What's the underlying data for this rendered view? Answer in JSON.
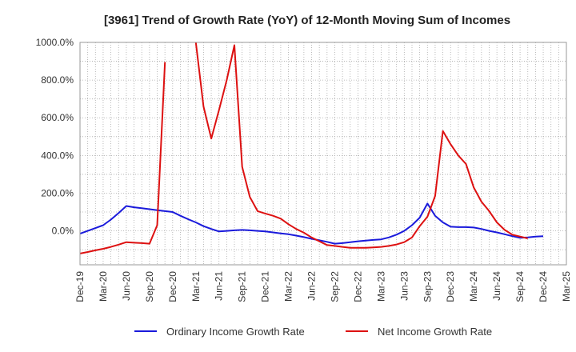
{
  "chart_data": {
    "type": "line",
    "title": "[3961]  Trend of Growth Rate (YoY) of 12-Month Moving Sum of Incomes",
    "xlabel": "",
    "ylabel": "",
    "x_ticks": [
      "Dec-19",
      "Mar-20",
      "Jun-20",
      "Sep-20",
      "Dec-20",
      "Mar-21",
      "Jun-21",
      "Sep-21",
      "Dec-21",
      "Mar-22",
      "Jun-22",
      "Sep-22",
      "Dec-22",
      "Mar-23",
      "Jun-23",
      "Sep-23",
      "Dec-23",
      "Mar-24",
      "Jun-24",
      "Sep-24",
      "Dec-24",
      "Mar-25"
    ],
    "y_ticks": [
      0,
      200,
      400,
      600,
      800,
      1000
    ],
    "y_tick_labels": [
      "0.0%",
      "200.0%",
      "400.0%",
      "600.0%",
      "800.0%",
      "1000.0%"
    ],
    "ylim": [
      -180,
      1000
    ],
    "grid": true,
    "legend_position": "bottom",
    "series": [
      {
        "name": "Ordinary Income Growth Rate",
        "color": "#1a1adb",
        "points": [
          {
            "x": "Dec-19",
            "y": -15
          },
          {
            "x": "Jan-20",
            "y": 0
          },
          {
            "x": "Feb-20",
            "y": 15
          },
          {
            "x": "Mar-20",
            "y": 30
          },
          {
            "x": "Apr-20",
            "y": 60
          },
          {
            "x": "May-20",
            "y": 95
          },
          {
            "x": "Jun-20",
            "y": 132
          },
          {
            "x": "Jul-20",
            "y": 125
          },
          {
            "x": "Aug-20",
            "y": 120
          },
          {
            "x": "Sep-20",
            "y": 115
          },
          {
            "x": "Oct-20",
            "y": 110
          },
          {
            "x": "Nov-20",
            "y": 105
          },
          {
            "x": "Dec-20",
            "y": 100
          },
          {
            "x": "Jan-21",
            "y": 80
          },
          {
            "x": "Feb-21",
            "y": 62
          },
          {
            "x": "Mar-21",
            "y": 45
          },
          {
            "x": "Apr-21",
            "y": 25
          },
          {
            "x": "May-21",
            "y": 10
          },
          {
            "x": "Jun-21",
            "y": -3
          },
          {
            "x": "Jul-21",
            "y": 0
          },
          {
            "x": "Aug-21",
            "y": 3
          },
          {
            "x": "Sep-21",
            "y": 5
          },
          {
            "x": "Oct-21",
            "y": 3
          },
          {
            "x": "Nov-21",
            "y": 0
          },
          {
            "x": "Dec-21",
            "y": -3
          },
          {
            "x": "Jan-22",
            "y": -8
          },
          {
            "x": "Feb-22",
            "y": -13
          },
          {
            "x": "Mar-22",
            "y": -18
          },
          {
            "x": "Apr-22",
            "y": -25
          },
          {
            "x": "May-22",
            "y": -33
          },
          {
            "x": "Jun-22",
            "y": -42
          },
          {
            "x": "Jul-22",
            "y": -50
          },
          {
            "x": "Aug-22",
            "y": -58
          },
          {
            "x": "Sep-22",
            "y": -68
          },
          {
            "x": "Oct-22",
            "y": -65
          },
          {
            "x": "Nov-22",
            "y": -60
          },
          {
            "x": "Dec-22",
            "y": -55
          },
          {
            "x": "Jan-23",
            "y": -52
          },
          {
            "x": "Feb-23",
            "y": -48
          },
          {
            "x": "Mar-23",
            "y": -45
          },
          {
            "x": "Apr-23",
            "y": -35
          },
          {
            "x": "May-23",
            "y": -20
          },
          {
            "x": "Jun-23",
            "y": 0
          },
          {
            "x": "Jul-23",
            "y": 30
          },
          {
            "x": "Aug-23",
            "y": 70
          },
          {
            "x": "Sep-23",
            "y": 145
          },
          {
            "x": "Oct-23",
            "y": 80
          },
          {
            "x": "Nov-23",
            "y": 45
          },
          {
            "x": "Dec-23",
            "y": 22
          },
          {
            "x": "Jan-24",
            "y": 20
          },
          {
            "x": "Feb-24",
            "y": 20
          },
          {
            "x": "Mar-24",
            "y": 18
          },
          {
            "x": "Apr-24",
            "y": 10
          },
          {
            "x": "May-24",
            "y": 0
          },
          {
            "x": "Jun-24",
            "y": -8
          },
          {
            "x": "Jul-24",
            "y": -18
          },
          {
            "x": "Aug-24",
            "y": -28
          },
          {
            "x": "Sep-24",
            "y": -37
          },
          {
            "x": "Oct-24",
            "y": -35
          },
          {
            "x": "Nov-24",
            "y": -30
          },
          {
            "x": "Dec-24",
            "y": -28
          }
        ]
      },
      {
        "name": "Net Income Growth Rate",
        "color": "#dd1111",
        "points": [
          {
            "x": "Dec-19",
            "y": -120
          },
          {
            "x": "Jan-20",
            "y": -112
          },
          {
            "x": "Feb-20",
            "y": -103
          },
          {
            "x": "Mar-20",
            "y": -95
          },
          {
            "x": "Apr-20",
            "y": -85
          },
          {
            "x": "May-20",
            "y": -73
          },
          {
            "x": "Jun-20",
            "y": -60
          },
          {
            "x": "Jul-20",
            "y": -63
          },
          {
            "x": "Aug-20",
            "y": -65
          },
          {
            "x": "Sep-20",
            "y": -68
          },
          {
            "x": "Oct-20",
            "y": 30
          },
          {
            "x": "Nov-20",
            "y": 895
          },
          {
            "x": "Mar-21",
            "y": 1010
          },
          {
            "x": "Apr-21",
            "y": 660
          },
          {
            "x": "May-21",
            "y": 490
          },
          {
            "x": "Jun-21",
            "y": 640
          },
          {
            "x": "Jul-21",
            "y": 800
          },
          {
            "x": "Aug-21",
            "y": 985
          },
          {
            "x": "Sep-21",
            "y": 340
          },
          {
            "x": "Oct-21",
            "y": 180
          },
          {
            "x": "Nov-21",
            "y": 105
          },
          {
            "x": "Dec-21",
            "y": 92
          },
          {
            "x": "Jan-22",
            "y": 80
          },
          {
            "x": "Feb-22",
            "y": 65
          },
          {
            "x": "Mar-22",
            "y": 35
          },
          {
            "x": "Apr-22",
            "y": 10
          },
          {
            "x": "May-22",
            "y": -10
          },
          {
            "x": "Jun-22",
            "y": -35
          },
          {
            "x": "Jul-22",
            "y": -55
          },
          {
            "x": "Aug-22",
            "y": -75
          },
          {
            "x": "Sep-22",
            "y": -80
          },
          {
            "x": "Oct-22",
            "y": -85
          },
          {
            "x": "Nov-22",
            "y": -90
          },
          {
            "x": "Dec-22",
            "y": -90
          },
          {
            "x": "Jan-23",
            "y": -90
          },
          {
            "x": "Feb-23",
            "y": -88
          },
          {
            "x": "Mar-23",
            "y": -85
          },
          {
            "x": "Apr-23",
            "y": -80
          },
          {
            "x": "May-23",
            "y": -72
          },
          {
            "x": "Jun-23",
            "y": -60
          },
          {
            "x": "Jul-23",
            "y": -35
          },
          {
            "x": "Aug-23",
            "y": 25
          },
          {
            "x": "Sep-23",
            "y": 75
          },
          {
            "x": "Oct-23",
            "y": 185
          },
          {
            "x": "Nov-23",
            "y": 530
          },
          {
            "x": "Dec-23",
            "y": 460
          },
          {
            "x": "Jan-24",
            "y": 400
          },
          {
            "x": "Feb-24",
            "y": 355
          },
          {
            "x": "Mar-24",
            "y": 230
          },
          {
            "x": "Apr-24",
            "y": 155
          },
          {
            "x": "May-24",
            "y": 105
          },
          {
            "x": "Jun-24",
            "y": 45
          },
          {
            "x": "Jul-24",
            "y": 5
          },
          {
            "x": "Aug-24",
            "y": -20
          },
          {
            "x": "Sep-24",
            "y": -30
          },
          {
            "x": "Oct-24",
            "y": -40
          }
        ]
      }
    ]
  }
}
